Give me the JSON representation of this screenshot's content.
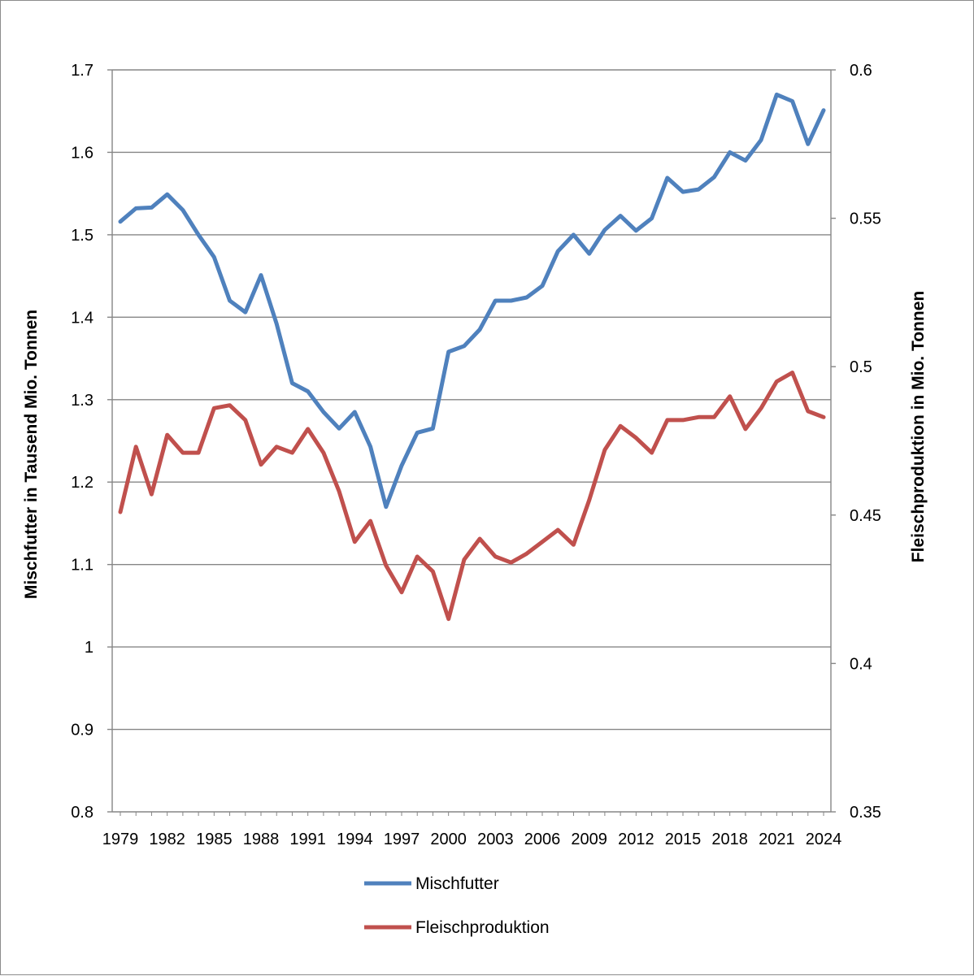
{
  "chart_data": {
    "type": "line",
    "title": "",
    "xlabel": "",
    "ylabel": "Mischfutter in Tausend Mio. Tonnen",
    "y2label": "Fleischproduktion in Mio. Tonnen",
    "ylim": [
      0.8,
      1.7
    ],
    "y2lim": [
      0.35,
      0.6
    ],
    "yticks": [
      "0.8",
      "0.9",
      "1",
      "1.1",
      "1.2",
      "1.3",
      "1.4",
      "1.5",
      "1.6",
      "1.7"
    ],
    "y2ticks": [
      "0.35",
      "0.4",
      "0.45",
      "0.5",
      "0.55",
      "0.6"
    ],
    "xticks": [
      "1979",
      "1982",
      "1985",
      "1988",
      "1991",
      "1994",
      "1997",
      "2000",
      "2003",
      "2006",
      "2009",
      "2012",
      "2015",
      "2018",
      "2021",
      "2024"
    ],
    "grid": "horizontal",
    "legend_position": "bottom",
    "x": [
      1979,
      1980,
      1981,
      1982,
      1983,
      1984,
      1985,
      1986,
      1987,
      1988,
      1989,
      1990,
      1991,
      1992,
      1993,
      1994,
      1995,
      1996,
      1997,
      1998,
      1999,
      2000,
      2001,
      2002,
      2003,
      2004,
      2005,
      2006,
      2007,
      2008,
      2009,
      2010,
      2011,
      2012,
      2013,
      2014,
      2015,
      2016,
      2017,
      2018,
      2019,
      2020,
      2021,
      2022,
      2023,
      2024
    ],
    "series": [
      {
        "name": "Mischfutter",
        "axis": "left",
        "color": "#4f81bd",
        "values": [
          1.516,
          1.532,
          1.533,
          1.549,
          1.53,
          1.5,
          1.473,
          1.42,
          1.406,
          1.451,
          1.392,
          1.32,
          1.31,
          1.285,
          1.265,
          1.285,
          1.243,
          1.17,
          1.22,
          1.26,
          1.265,
          1.358,
          1.365,
          1.385,
          1.42,
          1.42,
          1.424,
          1.438,
          1.48,
          1.5,
          1.477,
          1.506,
          1.523,
          1.505,
          1.52,
          1.569,
          1.552,
          1.555,
          1.57,
          1.6,
          1.59,
          1.615,
          1.67,
          1.662,
          1.61,
          1.651
        ]
      },
      {
        "name": "Fleischproduktion",
        "axis": "right",
        "color": "#c0504d",
        "values": [
          0.451,
          0.473,
          0.457,
          0.477,
          0.471,
          0.471,
          0.486,
          0.487,
          0.482,
          0.467,
          0.473,
          0.471,
          0.479,
          0.471,
          0.458,
          0.441,
          0.448,
          0.433,
          0.424,
          0.436,
          0.431,
          0.415,
          0.435,
          0.442,
          0.436,
          0.434,
          0.437,
          0.441,
          0.445,
          0.44,
          0.455,
          0.472,
          0.48,
          0.476,
          0.471,
          0.482,
          0.482,
          0.483,
          0.483,
          0.49,
          0.479,
          0.486,
          0.495,
          0.498,
          0.485,
          0.483
        ]
      }
    ]
  }
}
